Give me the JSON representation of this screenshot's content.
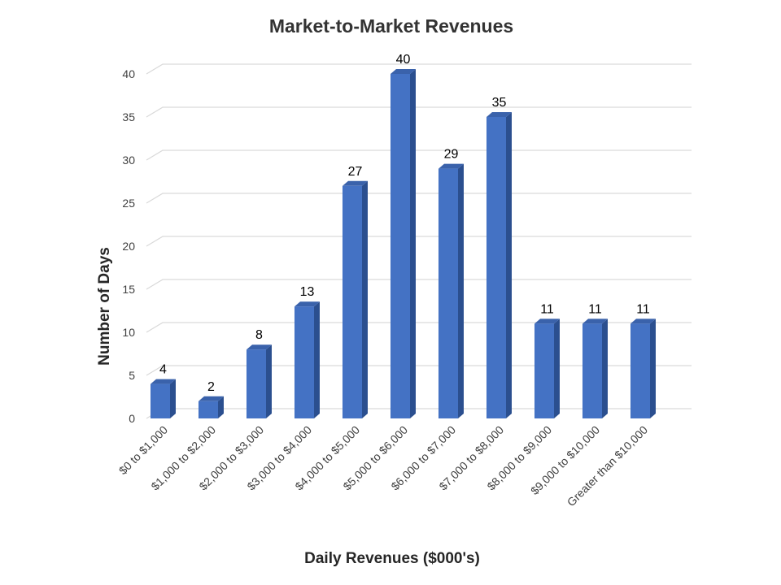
{
  "colors": {
    "bar_front": "#4472c4",
    "bar_side": "#2b4f8f",
    "bar_top": "#3a62ab",
    "grid": "#d9d9d9"
  },
  "chart_data": {
    "type": "bar",
    "title": "Market-to-Market Revenues",
    "xlabel": "Daily Revenues ($000's)",
    "ylabel": "Number of Days",
    "ylim": [
      0,
      40
    ],
    "yticks": [
      0,
      5,
      10,
      15,
      20,
      25,
      30,
      35,
      40
    ],
    "grid": true,
    "legend": "none",
    "categories": [
      "$0 to $1,000",
      "$1,000 to $2,000",
      "$2,000 to $3,000",
      "$3,000 to $4,000",
      "$4,000 to $5,000",
      "$5,000 to $6,000",
      "$6,000 to $7,000",
      "$7,000 to $8,000",
      "$8,000 to $9,000",
      "$9,000 to $10,000",
      "Greater than $10,000"
    ],
    "values": [
      4,
      2,
      8,
      13,
      27,
      40,
      29,
      35,
      11,
      11,
      11
    ]
  }
}
